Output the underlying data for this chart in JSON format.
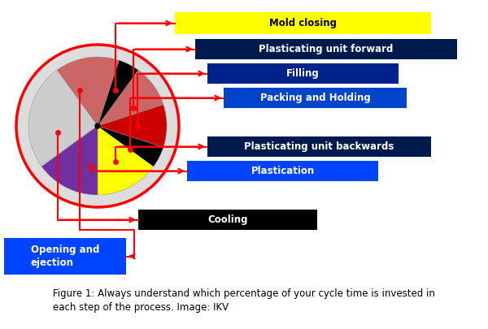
{
  "title": "Figure 1: Always understand which percentage of your cycle time is invested in\neach step of the process. Image: IKV",
  "slice_sizes": [
    15,
    5,
    10,
    10,
    5,
    15,
    25,
    15
  ],
  "slice_colors": [
    "#ffff00",
    "#000000",
    "#cc0000",
    "#cc6666",
    "#000000",
    "#cc6666",
    "#cccccc",
    "#7030a0"
  ],
  "label_boxes": [
    {
      "label": "Mold closing",
      "bg": "#ffff00",
      "tc": "#000000"
    },
    {
      "label": "Plasticating unit forward",
      "bg": "#001a4d",
      "tc": "#ffffff"
    },
    {
      "label": "Filling",
      "bg": "#00228b",
      "tc": "#ffffff"
    },
    {
      "label": "Packing and Holding",
      "bg": "#0044cc",
      "tc": "#ffffff"
    },
    {
      "label": "Plasticating unit backwards",
      "bg": "#001a4d",
      "tc": "#ffffff"
    },
    {
      "label": "Plastication",
      "bg": "#0044ff",
      "tc": "#ffffff"
    },
    {
      "label": "Cooling",
      "bg": "#000000",
      "tc": "#ffffff"
    },
    {
      "label": "Opening and\nejection",
      "bg": "#0044ff",
      "tc": "#ffffff"
    }
  ],
  "background_color": "#ffffff",
  "line_color": "red",
  "line_width": 1.5,
  "caption_text": "Figure 1: Always understand which percentage of your cycle time is invested in\neach step of the process. Image: IKV"
}
